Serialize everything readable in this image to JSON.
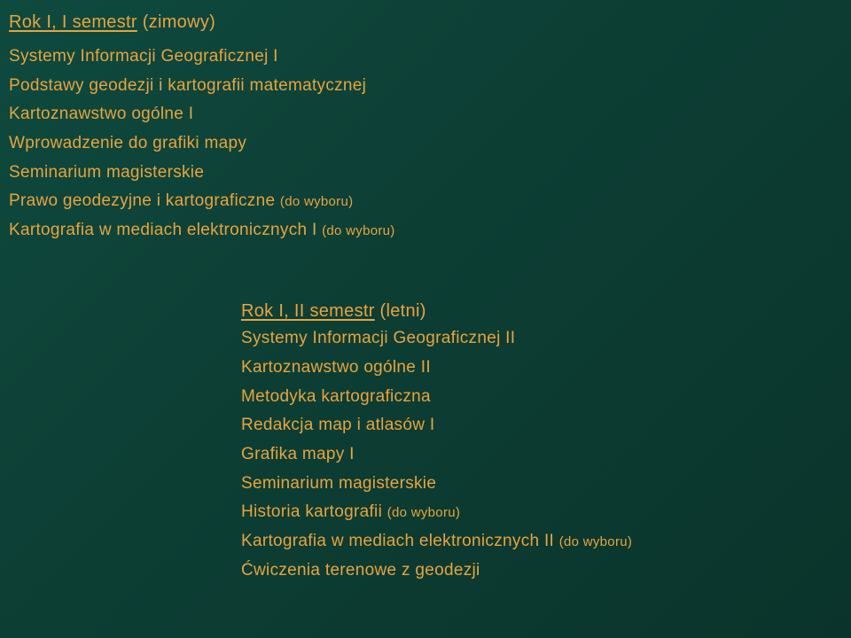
{
  "colors": {
    "background_gradient_start": "#0f4a3f",
    "background_gradient_end": "#0a342b",
    "text": "#e8a43d"
  },
  "typography": {
    "font_family": "Verdana, Tahoma, sans-serif",
    "heading_fontsize": 20,
    "line_fontsize": 19,
    "suffix_fontsize": 15
  },
  "section1": {
    "heading_underlined": "Rok I, I semestr",
    "heading_paren": " (zimowy)",
    "items": [
      {
        "text": "Systemy Informacji Geograficznej I",
        "suffix": ""
      },
      {
        "text": "Podstawy geodezji i kartografii matematycznej",
        "suffix": ""
      },
      {
        "text": "Kartoznawstwo ogólne I",
        "suffix": ""
      },
      {
        "text": "Wprowadzenie do grafiki mapy",
        "suffix": ""
      },
      {
        "text": "Seminarium magisterskie",
        "suffix": ""
      },
      {
        "text": "Prawo geodezyjne i kartograficzne ",
        "suffix": "(do wyboru)"
      },
      {
        "text": "Kartografia w mediach elektronicznych I ",
        "suffix": "(do wyboru)"
      }
    ]
  },
  "section2": {
    "heading_underlined": "Rok I, II semestr",
    "heading_paren": " (letni)",
    "items": [
      {
        "text": "Systemy Informacji Geograficznej II",
        "suffix": ""
      },
      {
        "text": "Kartoznawstwo ogólne II",
        "suffix": ""
      },
      {
        "text": "Metodyka kartograficzna",
        "suffix": ""
      },
      {
        "text": "Redakcja map i atlasów I",
        "suffix": ""
      },
      {
        "text": "Grafika mapy I",
        "suffix": ""
      },
      {
        "text": "Seminarium magisterskie",
        "suffix": ""
      },
      {
        "text": "Historia kartografii ",
        "suffix": "(do wyboru)"
      },
      {
        "text": "Kartografia w mediach elektronicznych II ",
        "suffix": "(do wyboru)"
      },
      {
        "text": "Ćwiczenia terenowe z geodezji",
        "suffix": ""
      }
    ]
  }
}
